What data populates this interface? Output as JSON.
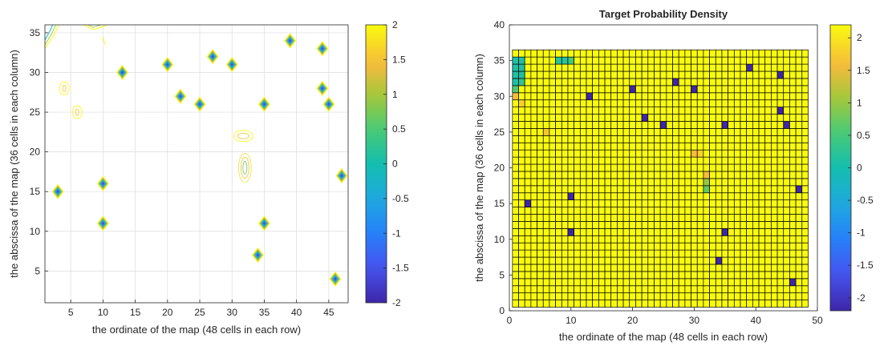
{
  "chart_data": [
    {
      "type": "contour",
      "title": "",
      "xlabel": "the ordinate of the map (48 cells in each row)",
      "ylabel": "the abscissa of the map (36 cells in each column)",
      "xlim": [
        1,
        48
      ],
      "ylim": [
        1,
        36
      ],
      "xticks": [
        5,
        10,
        15,
        20,
        25,
        30,
        35,
        40,
        45
      ],
      "yticks": [
        5,
        10,
        15,
        20,
        25,
        30,
        35
      ],
      "grid": true,
      "colorbar": {
        "range": [
          -2,
          2
        ],
        "ticks": [
          -2,
          -1.5,
          -1,
          -0.5,
          0,
          0.5,
          1,
          1.5,
          2
        ],
        "tick_labels": [
          "-2",
          "-1.5",
          "-1",
          "-0.5",
          "0",
          "0.5",
          "1",
          "1.5",
          "2"
        ]
      },
      "targets": [
        [
          3,
          15
        ],
        [
          10,
          16
        ],
        [
          10,
          11
        ],
        [
          13,
          30
        ],
        [
          20,
          31
        ],
        [
          22,
          27
        ],
        [
          25,
          26
        ],
        [
          27,
          32
        ],
        [
          30,
          31
        ],
        [
          35,
          26
        ],
        [
          35,
          11
        ],
        [
          34,
          7
        ],
        [
          39,
          34
        ],
        [
          44,
          33
        ],
        [
          44,
          28
        ],
        [
          45,
          26
        ],
        [
          47,
          17
        ],
        [
          46,
          4
        ]
      ],
      "minor_blobs": [
        [
          4,
          28
        ],
        [
          6,
          25
        ],
        [
          32,
          22
        ],
        [
          32,
          18
        ]
      ]
    },
    {
      "type": "heatmap",
      "title": "Target Probability Density",
      "xlabel": "the ordinate of the map (48 cells in each row)",
      "ylabel": "the abscissa of the map (36 cells in each column)",
      "xlim": [
        0,
        50
      ],
      "ylim": [
        0,
        40
      ],
      "xticks": [
        0,
        10,
        20,
        30,
        40,
        50
      ],
      "yticks": [
        0,
        5,
        10,
        15,
        20,
        25,
        30,
        35,
        40
      ],
      "grid_cols": 48,
      "grid_rows": 36,
      "default_value": 2.2,
      "colorbar": {
        "range": [
          -2.2,
          2.2
        ],
        "ticks": [
          -2,
          -1.5,
          -1,
          -0.5,
          0,
          0.5,
          1,
          1.5,
          2
        ],
        "tick_labels": [
          "-2",
          "-1.5",
          "-1",
          "-0.5",
          "0",
          "0.5",
          "1",
          "1.5",
          "2"
        ]
      },
      "cells": [
        {
          "col": 3,
          "row": 15,
          "value": -2.2
        },
        {
          "col": 10,
          "row": 16,
          "value": -2.2
        },
        {
          "col": 10,
          "row": 11,
          "value": -2.2
        },
        {
          "col": 13,
          "row": 30,
          "value": -2.2
        },
        {
          "col": 20,
          "row": 31,
          "value": -2.2
        },
        {
          "col": 22,
          "row": 27,
          "value": -2.2
        },
        {
          "col": 25,
          "row": 26,
          "value": -2.2
        },
        {
          "col": 27,
          "row": 32,
          "value": -2.2
        },
        {
          "col": 30,
          "row": 31,
          "value": -2.2
        },
        {
          "col": 35,
          "row": 26,
          "value": -2.2
        },
        {
          "col": 35,
          "row": 11,
          "value": -2.2
        },
        {
          "col": 34,
          "row": 7,
          "value": -2.2
        },
        {
          "col": 39,
          "row": 34,
          "value": -2.2
        },
        {
          "col": 44,
          "row": 33,
          "value": -2.2
        },
        {
          "col": 44,
          "row": 28,
          "value": -2.2
        },
        {
          "col": 45,
          "row": 26,
          "value": -2.2
        },
        {
          "col": 47,
          "row": 17,
          "value": -2.2
        },
        {
          "col": 46,
          "row": 4,
          "value": -2.2
        },
        {
          "col": 1,
          "row": 35,
          "value": 0.1
        },
        {
          "col": 2,
          "row": 35,
          "value": 0.1
        },
        {
          "col": 1,
          "row": 34,
          "value": 0.1
        },
        {
          "col": 2,
          "row": 34,
          "value": 0.1
        },
        {
          "col": 1,
          "row": 33,
          "value": 0.1
        },
        {
          "col": 2,
          "row": 33,
          "value": 0.1
        },
        {
          "col": 1,
          "row": 32,
          "value": 0.1
        },
        {
          "col": 2,
          "row": 32,
          "value": 0.3
        },
        {
          "col": 1,
          "row": 31,
          "value": 0.6
        },
        {
          "col": 8,
          "row": 35,
          "value": 0.2
        },
        {
          "col": 9,
          "row": 35,
          "value": 0.2
        },
        {
          "col": 10,
          "row": 35,
          "value": 0.5
        },
        {
          "col": 1,
          "row": 30,
          "value": 1.6
        },
        {
          "col": 2,
          "row": 29,
          "value": 1.8
        },
        {
          "col": 6,
          "row": 25,
          "value": 1.7
        },
        {
          "col": 30,
          "row": 22,
          "value": 1.6
        },
        {
          "col": 31,
          "row": 22,
          "value": 1.8
        },
        {
          "col": 32,
          "row": 19,
          "value": 1.6
        },
        {
          "col": 32,
          "row": 18,
          "value": 1.0
        },
        {
          "col": 32,
          "row": 17,
          "value": 0.7
        }
      ]
    }
  ]
}
